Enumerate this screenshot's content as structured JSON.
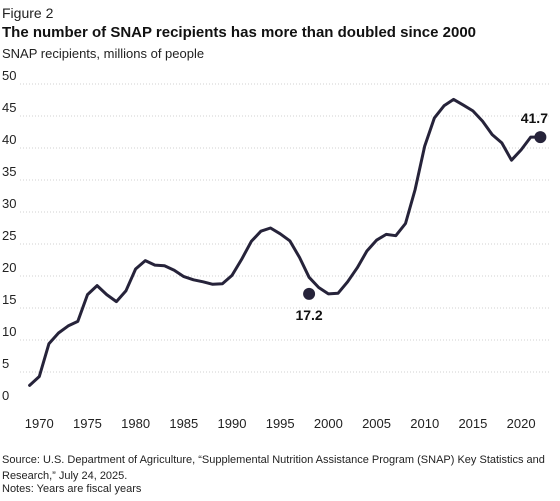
{
  "figure_label": "Figure 2",
  "title": "The number of SNAP recipients has more than doubled since 2000",
  "subtitle": "SNAP recipients, millions of people",
  "source": "Source: U.S. Department of Agriculture, “Supplemental Nutrition Assistance Program (SNAP) Key Statistics and Research,” July 24, 2025.",
  "notes": "Notes: Years are fiscal years",
  "colors": {
    "line": "#26233a",
    "grid": "#d0d0d0",
    "text": "#222222"
  },
  "chart_data": {
    "type": "line",
    "title": "The number of SNAP recipients has more than doubled since 2000",
    "subtitle": "SNAP recipients, millions of people",
    "xlabel": "",
    "ylabel": "",
    "xlim": [
      1968,
      2023
    ],
    "ylim": [
      0,
      50
    ],
    "x_ticks": [
      1970,
      1975,
      1980,
      1985,
      1990,
      1995,
      2000,
      2005,
      2010,
      2015,
      2020
    ],
    "y_ticks": [
      0,
      5,
      10,
      15,
      20,
      25,
      30,
      35,
      40,
      45,
      50
    ],
    "grid": "horizontal",
    "series": [
      {
        "x": [
          1969,
          1970,
          1971,
          1972,
          1973,
          1974,
          1975,
          1976,
          1977,
          1978,
          1979,
          1980,
          1981,
          1982,
          1983,
          1984,
          1985,
          1986,
          1987,
          1988,
          1989,
          1990,
          1991,
          1992,
          1993,
          1994,
          1995,
          1996,
          1997,
          1998,
          1999,
          2000,
          2001,
          2002,
          2003,
          2004,
          2005,
          2006,
          2007,
          2008,
          2009,
          2010,
          2011,
          2012,
          2013,
          2014,
          2015,
          2016,
          2017,
          2018,
          2019,
          2020,
          2021,
          2022
        ],
        "values": [
          2.9,
          4.3,
          9.4,
          11.1,
          12.2,
          12.9,
          17.1,
          18.5,
          17.1,
          16.0,
          17.7,
          21.1,
          22.4,
          21.7,
          21.6,
          20.9,
          19.9,
          19.4,
          19.1,
          18.7,
          18.8,
          20.1,
          22.6,
          25.4,
          27.0,
          27.5,
          26.6,
          25.5,
          22.9,
          19.8,
          18.2,
          17.2,
          17.3,
          19.1,
          21.3,
          23.9,
          25.6,
          26.5,
          26.3,
          28.2,
          33.5,
          40.3,
          44.7,
          46.6,
          47.6,
          46.7,
          45.8,
          44.2,
          42.1,
          40.8,
          38.1,
          39.7,
          41.7,
          41.7
        ]
      }
    ],
    "annotations": [
      {
        "x": 1998,
        "y": 17.2,
        "text": "17.2"
      },
      {
        "x": 2022,
        "y": 41.7,
        "text": "41.7"
      }
    ]
  }
}
